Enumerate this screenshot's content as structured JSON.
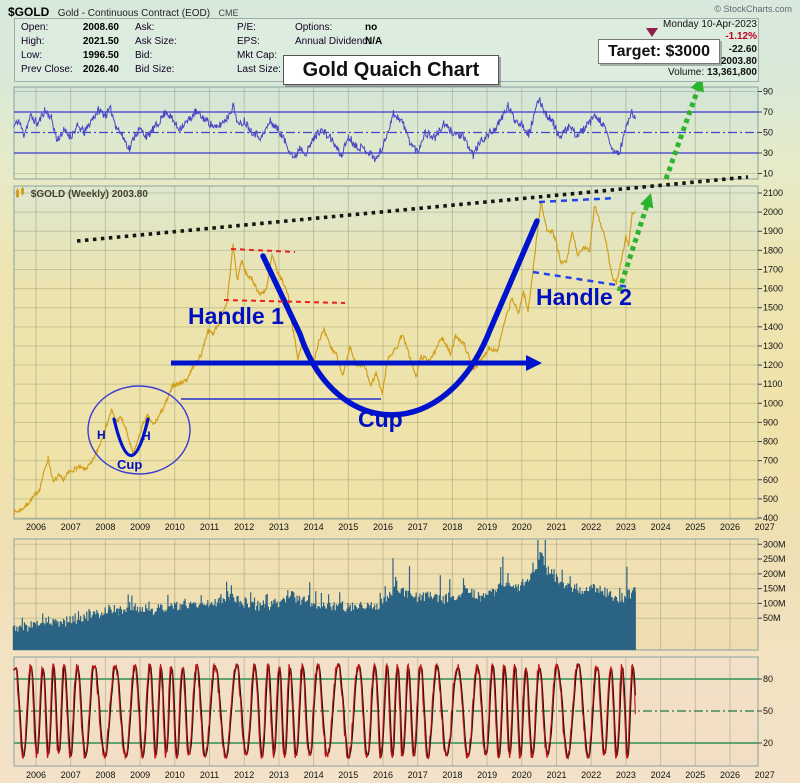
{
  "header": {
    "symbol": "$GOLD",
    "description": "Gold - Continuous Contract (EOD)",
    "exchange": "CME",
    "copyright": "© StockCharts.com"
  },
  "quote": {
    "rows": [
      {
        "l1": "Open:",
        "v1": "2008.60",
        "l2": "Ask:",
        "l3": "P/E:",
        "l4": "Options:",
        "v4": "no"
      },
      {
        "l1": "High:",
        "v1": "2021.50",
        "l2": "Ask Size:",
        "l3": "EPS:",
        "l4": "Annual Dividend:",
        "v4": "N/A"
      },
      {
        "l1": "Low:",
        "v1": "1996.50",
        "l2": "Bid:",
        "l3": "Mkt Cap:",
        "l4": "",
        "v4": ""
      },
      {
        "l1": "Prev Close:",
        "v1": "2026.40",
        "l2": "Bid Size:",
        "l3": "Last Size:",
        "l4": "",
        "v4": ""
      }
    ],
    "date": "Monday 10-Apr-2023",
    "change_pct": "-1.12%",
    "change_abs": "-22.60",
    "last": "2003.80",
    "volume_label": "Volume:",
    "volume": "13,361,800"
  },
  "title_box": "Gold Quaich Chart",
  "target_box": "Target: $3000",
  "legend": "$GOLD (Weekly) 2003.80",
  "annotations": {
    "handle1": "Handle 1",
    "handle2": "Handle 2",
    "cup": "Cup",
    "small_cup": "Cup",
    "h_left": "H",
    "h_right": "H",
    "neckline_price": 1210,
    "target_price": 3000
  },
  "colors": {
    "price_line": "#d2a01c",
    "annotation_blue": "#0013cc",
    "annotation_red": "#e82020",
    "annotation_green": "#2db32d",
    "trendline_black": "#151515",
    "volume_bar": "#2a6384",
    "stoch_red": "#cc1111",
    "stoch_black": "#141414",
    "rsi_blue": "#4646c6",
    "pct_red": "#c00022",
    "triangle_maroon": "#8d2048"
  },
  "chart_data": {
    "type": "line",
    "title": "Gold Quaich Chart",
    "symbol_label": "$GOLD (Weekly) 2003.80",
    "x_start": 2005.35,
    "x_end": 2023.27,
    "x_years": [
      "2006",
      "2007",
      "2008",
      "2009",
      "2010",
      "2011",
      "2012",
      "2013",
      "2014",
      "2015",
      "2016",
      "2017",
      "2018",
      "2019",
      "2020",
      "2021",
      "2022",
      "2023",
      "2024",
      "2025",
      "2026",
      "2027"
    ],
    "panels": {
      "rsi": {
        "type": "line",
        "ylabels": [
          "90",
          "70",
          "50",
          "30",
          "10"
        ],
        "overbought": 70,
        "mid": 50,
        "oversold": 30,
        "noise": 4,
        "seed": 11,
        "anchors": [
          [
            2005.35,
            55
          ],
          [
            2005.5,
            62
          ],
          [
            2005.65,
            48
          ],
          [
            2005.85,
            66
          ],
          [
            2006.05,
            58
          ],
          [
            2006.25,
            72
          ],
          [
            2006.45,
            64
          ],
          [
            2006.6,
            42
          ],
          [
            2006.8,
            52
          ],
          [
            2007.0,
            46
          ],
          [
            2007.2,
            56
          ],
          [
            2007.4,
            50
          ],
          [
            2007.6,
            62
          ],
          [
            2007.8,
            72
          ],
          [
            2008.0,
            67
          ],
          [
            2008.15,
            73
          ],
          [
            2008.3,
            57
          ],
          [
            2008.5,
            46
          ],
          [
            2008.7,
            34
          ],
          [
            2008.85,
            48
          ],
          [
            2009.0,
            53
          ],
          [
            2009.2,
            46
          ],
          [
            2009.5,
            58
          ],
          [
            2009.75,
            71
          ],
          [
            2009.9,
            64
          ],
          [
            2010.1,
            54
          ],
          [
            2010.35,
            60
          ],
          [
            2010.6,
            70
          ],
          [
            2010.8,
            65
          ],
          [
            2011.0,
            59
          ],
          [
            2011.2,
            54
          ],
          [
            2011.5,
            64
          ],
          [
            2011.68,
            76
          ],
          [
            2011.85,
            56
          ],
          [
            2012.0,
            62
          ],
          [
            2012.2,
            52
          ],
          [
            2012.5,
            45
          ],
          [
            2012.75,
            61
          ],
          [
            2013.0,
            52
          ],
          [
            2013.2,
            40
          ],
          [
            2013.45,
            24
          ],
          [
            2013.6,
            36
          ],
          [
            2013.8,
            30
          ],
          [
            2014.0,
            44
          ],
          [
            2014.2,
            53
          ],
          [
            2014.5,
            44
          ],
          [
            2014.8,
            27
          ],
          [
            2015.0,
            46
          ],
          [
            2015.2,
            38
          ],
          [
            2015.5,
            33
          ],
          [
            2015.8,
            24
          ],
          [
            2016.0,
            36
          ],
          [
            2016.3,
            69
          ],
          [
            2016.55,
            61
          ],
          [
            2016.8,
            39
          ],
          [
            2017.0,
            31
          ],
          [
            2017.2,
            50
          ],
          [
            2017.5,
            45
          ],
          [
            2017.75,
            58
          ],
          [
            2018.0,
            50
          ],
          [
            2018.3,
            46
          ],
          [
            2018.6,
            28
          ],
          [
            2018.8,
            41
          ],
          [
            2019.0,
            47
          ],
          [
            2019.3,
            56
          ],
          [
            2019.6,
            76
          ],
          [
            2019.8,
            62
          ],
          [
            2020.0,
            59
          ],
          [
            2020.2,
            48
          ],
          [
            2020.5,
            83
          ],
          [
            2020.7,
            68
          ],
          [
            2020.9,
            60
          ],
          [
            2021.1,
            44
          ],
          [
            2021.35,
            56
          ],
          [
            2021.6,
            47
          ],
          [
            2021.9,
            57
          ],
          [
            2022.1,
            66
          ],
          [
            2022.35,
            58
          ],
          [
            2022.6,
            33
          ],
          [
            2022.8,
            29
          ],
          [
            2023.0,
            54
          ],
          [
            2023.15,
            70
          ],
          [
            2023.27,
            63
          ]
        ]
      },
      "price": {
        "type": "line",
        "ylabels": [
          "2100",
          "2000",
          "1900",
          "1800",
          "1700",
          "1600",
          "1500",
          "1400",
          "1300",
          "1200",
          "1100",
          "1000",
          "900",
          "800",
          "700",
          "600",
          "500",
          "400"
        ],
        "last": 2003.8,
        "noise": 12,
        "seed": 7,
        "anchors": [
          [
            2005.35,
            428
          ],
          [
            2005.55,
            440
          ],
          [
            2005.75,
            472
          ],
          [
            2005.95,
            515
          ],
          [
            2006.1,
            552
          ],
          [
            2006.35,
            715
          ],
          [
            2006.5,
            585
          ],
          [
            2006.65,
            620
          ],
          [
            2006.8,
            600
          ],
          [
            2006.95,
            640
          ],
          [
            2007.2,
            665
          ],
          [
            2007.4,
            655
          ],
          [
            2007.6,
            685
          ],
          [
            2007.85,
            790
          ],
          [
            2008.0,
            870
          ],
          [
            2008.18,
            965
          ],
          [
            2008.3,
            905
          ],
          [
            2008.45,
            925
          ],
          [
            2008.6,
            860
          ],
          [
            2008.8,
            728
          ],
          [
            2008.95,
            815
          ],
          [
            2009.1,
            900
          ],
          [
            2009.22,
            935
          ],
          [
            2009.38,
            885
          ],
          [
            2009.55,
            935
          ],
          [
            2009.75,
            1005
          ],
          [
            2009.95,
            1095
          ],
          [
            2010.15,
            1105
          ],
          [
            2010.35,
            1125
          ],
          [
            2010.55,
            1200
          ],
          [
            2010.75,
            1250
          ],
          [
            2010.95,
            1380
          ],
          [
            2011.1,
            1365
          ],
          [
            2011.3,
            1430
          ],
          [
            2011.5,
            1520
          ],
          [
            2011.68,
            1830
          ],
          [
            2011.8,
            1640
          ],
          [
            2011.92,
            1745
          ],
          [
            2012.05,
            1680
          ],
          [
            2012.25,
            1640
          ],
          [
            2012.45,
            1570
          ],
          [
            2012.65,
            1600
          ],
          [
            2012.8,
            1775
          ],
          [
            2012.95,
            1690
          ],
          [
            2013.1,
            1640
          ],
          [
            2013.25,
            1580
          ],
          [
            2013.4,
            1390
          ],
          [
            2013.55,
            1230
          ],
          [
            2013.7,
            1330
          ],
          [
            2013.85,
            1280
          ],
          [
            2013.98,
            1200
          ],
          [
            2014.15,
            1330
          ],
          [
            2014.3,
            1380
          ],
          [
            2014.5,
            1290
          ],
          [
            2014.65,
            1260
          ],
          [
            2014.85,
            1145
          ],
          [
            2015.05,
            1290
          ],
          [
            2015.25,
            1190
          ],
          [
            2015.45,
            1205
          ],
          [
            2015.65,
            1090
          ],
          [
            2015.8,
            1160
          ],
          [
            2015.98,
            1055
          ],
          [
            2016.15,
            1240
          ],
          [
            2016.4,
            1290
          ],
          [
            2016.55,
            1365
          ],
          [
            2016.75,
            1255
          ],
          [
            2016.95,
            1135
          ],
          [
            2017.1,
            1245
          ],
          [
            2017.3,
            1225
          ],
          [
            2017.5,
            1265
          ],
          [
            2017.7,
            1350
          ],
          [
            2017.95,
            1255
          ],
          [
            2018.1,
            1355
          ],
          [
            2018.35,
            1305
          ],
          [
            2018.6,
            1180
          ],
          [
            2018.85,
            1230
          ],
          [
            2019.05,
            1290
          ],
          [
            2019.3,
            1275
          ],
          [
            2019.5,
            1420
          ],
          [
            2019.72,
            1550
          ],
          [
            2019.9,
            1470
          ],
          [
            2020.05,
            1585
          ],
          [
            2020.18,
            1480
          ],
          [
            2020.35,
            1740
          ],
          [
            2020.55,
            2050
          ],
          [
            2020.72,
            1910
          ],
          [
            2020.88,
            1900
          ],
          [
            2021.0,
            1840
          ],
          [
            2021.12,
            1730
          ],
          [
            2021.3,
            1745
          ],
          [
            2021.45,
            1900
          ],
          [
            2021.62,
            1770
          ],
          [
            2021.8,
            1815
          ],
          [
            2021.95,
            1795
          ],
          [
            2022.1,
            2040
          ],
          [
            2022.28,
            1935
          ],
          [
            2022.42,
            1850
          ],
          [
            2022.6,
            1660
          ],
          [
            2022.72,
            1630
          ],
          [
            2022.88,
            1755
          ],
          [
            2023.0,
            1870
          ],
          [
            2023.08,
            1830
          ],
          [
            2023.18,
            1995
          ],
          [
            2023.27,
            2004
          ]
        ]
      },
      "volume": {
        "type": "bar",
        "ylabels": [
          "300M",
          "250M",
          "200M",
          "150M",
          "100M",
          "50M"
        ],
        "noise": 18,
        "seed": 5,
        "spike_seed": 6,
        "anchors": [
          [
            2005.35,
            16
          ],
          [
            2005.7,
            20
          ],
          [
            2006.0,
            30
          ],
          [
            2006.3,
            40
          ],
          [
            2006.6,
            32
          ],
          [
            2007.0,
            44
          ],
          [
            2007.4,
            56
          ],
          [
            2007.8,
            62
          ],
          [
            2008.1,
            85
          ],
          [
            2008.4,
            72
          ],
          [
            2008.7,
            95
          ],
          [
            2009.0,
            82
          ],
          [
            2009.4,
            76
          ],
          [
            2009.8,
            92
          ],
          [
            2010.2,
            86
          ],
          [
            2010.6,
            100
          ],
          [
            2011.0,
            96
          ],
          [
            2011.3,
            112
          ],
          [
            2011.6,
            128
          ],
          [
            2011.9,
            102
          ],
          [
            2012.2,
            96
          ],
          [
            2012.6,
            92
          ],
          [
            2013.0,
            102
          ],
          [
            2013.3,
            132
          ],
          [
            2013.6,
            112
          ],
          [
            2014.0,
            96
          ],
          [
            2014.4,
            92
          ],
          [
            2014.8,
            88
          ],
          [
            2015.2,
            92
          ],
          [
            2015.6,
            88
          ],
          [
            2016.0,
            102
          ],
          [
            2016.3,
            148
          ],
          [
            2016.7,
            132
          ],
          [
            2017.0,
            118
          ],
          [
            2017.3,
            128
          ],
          [
            2017.7,
            112
          ],
          [
            2018.0,
            126
          ],
          [
            2018.4,
            138
          ],
          [
            2018.8,
            122
          ],
          [
            2019.2,
            142
          ],
          [
            2019.6,
            165
          ],
          [
            2019.9,
            152
          ],
          [
            2020.1,
            172
          ],
          [
            2020.4,
            205
          ],
          [
            2020.55,
            265
          ],
          [
            2020.7,
            215
          ],
          [
            2020.9,
            195
          ],
          [
            2021.1,
            175
          ],
          [
            2021.3,
            162
          ],
          [
            2021.55,
            152
          ],
          [
            2021.8,
            142
          ],
          [
            2022.0,
            152
          ],
          [
            2022.3,
            148
          ],
          [
            2022.6,
            122
          ],
          [
            2022.9,
            118
          ],
          [
            2023.1,
            132
          ],
          [
            2023.27,
            142
          ]
        ]
      },
      "stoch": {
        "type": "line",
        "ylabels": [
          "80",
          "50",
          "20"
        ],
        "upper": 80,
        "mid": 50,
        "lower": 20,
        "high": 94,
        "low": 6,
        "base_period_years": 0.46,
        "period_wobble": 0.16,
        "seed": 13
      }
    }
  }
}
